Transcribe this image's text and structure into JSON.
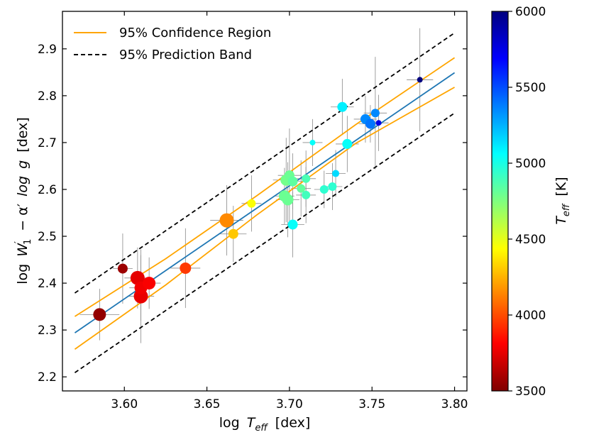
{
  "chart_data": {
    "type": "scatter",
    "xlabel_main": "log",
    "xlabel_var": "T",
    "xlabel_sub": "eff",
    "xlabel_unit": "[dex]",
    "ylabel_main": "log",
    "ylabel_var": "W",
    "ylabel_sup": "′",
    "ylabel_sub": "1",
    "ylabel_mid": "− α′",
    "ylabel_log": "log",
    "ylabel_g": "g",
    "ylabel_unit": "[dex]",
    "xlim": [
      3.5625,
      3.8075
    ],
    "ylim": [
      2.17,
      2.98
    ],
    "xticks": [
      "3.60",
      "3.65",
      "3.70",
      "3.75",
      "3.80"
    ],
    "xtick_values": [
      3.6,
      3.65,
      3.7,
      3.75,
      3.8
    ],
    "yticks": [
      "2.2",
      "2.3",
      "2.4",
      "2.5",
      "2.6",
      "2.7",
      "2.8",
      "2.9"
    ],
    "ytick_values": [
      2.2,
      2.3,
      2.4,
      2.5,
      2.6,
      2.7,
      2.8,
      2.9
    ],
    "legend": {
      "placement": "top-left",
      "entries": [
        {
          "label": "95% Confidence Region",
          "color": "#ffa500",
          "dash": "solid"
        },
        {
          "label": "95% Prediction Band",
          "color": "#000000",
          "dash": "dashed"
        }
      ]
    },
    "fit_line": {
      "color": "#1f77b4",
      "x": [
        3.57,
        3.8
      ],
      "y": [
        2.294,
        2.849
      ]
    },
    "confidence_upper": {
      "color": "#ffa500",
      "x": [
        3.57,
        3.625,
        3.68,
        3.74,
        3.8
      ],
      "y": [
        2.329,
        2.452,
        2.586,
        2.738,
        2.881
      ]
    },
    "confidence_lower": {
      "color": "#ffa500",
      "x": [
        3.57,
        3.625,
        3.68,
        3.74,
        3.8
      ],
      "y": [
        2.259,
        2.396,
        2.545,
        2.698,
        2.818
      ]
    },
    "prediction_upper": {
      "color": "#000000",
      "x": [
        3.57,
        3.8
      ],
      "y": [
        2.379,
        2.934
      ]
    },
    "prediction_lower": {
      "color": "#000000",
      "x": [
        3.57,
        3.8
      ],
      "y": [
        2.209,
        2.763
      ]
    },
    "colorbar": {
      "label_var": "T",
      "label_sub": "eff",
      "label_unit": "[K]",
      "range": [
        3500,
        6000
      ],
      "ticks": [
        "3500",
        "4000",
        "4500",
        "5000",
        "5500",
        "6000"
      ],
      "tick_values": [
        3500,
        4000,
        4500,
        5000,
        5500,
        6000
      ],
      "colormap": "jet-dark",
      "stops": [
        "#7f0000",
        "#ff0000",
        "#ff7f00",
        "#ffff00",
        "#7fff7f",
        "#00ffff",
        "#007fff",
        "#0000ff",
        "#00007f"
      ]
    },
    "points": [
      {
        "x": 3.585,
        "y": 2.333,
        "teff": 3550,
        "size": 9,
        "xerr": 0.012,
        "yerr": 0.055
      },
      {
        "x": 3.599,
        "y": 2.431,
        "teff": 3570,
        "size": 7,
        "xerr": 0.006,
        "yerr": 0.075
      },
      {
        "x": 3.608,
        "y": 2.411,
        "teff": 3750,
        "size": 10,
        "xerr": 0.008,
        "yerr": 0.065
      },
      {
        "x": 3.61,
        "y": 2.372,
        "teff": 3760,
        "size": 10,
        "xerr": 0.008,
        "yerr": 0.1
      },
      {
        "x": 3.61,
        "y": 2.39,
        "teff": 3780,
        "size": 9,
        "xerr": 0.007,
        "yerr": 0.07
      },
      {
        "x": 3.615,
        "y": 2.4,
        "teff": 3800,
        "size": 9,
        "xerr": 0.007,
        "yerr": 0.055
      },
      {
        "x": 3.637,
        "y": 2.432,
        "teff": 3950,
        "size": 8,
        "xerr": 0.009,
        "yerr": 0.085
      },
      {
        "x": 3.662,
        "y": 2.534,
        "teff": 4150,
        "size": 10,
        "xerr": 0.01,
        "yerr": 0.075
      },
      {
        "x": 3.666,
        "y": 2.505,
        "teff": 4300,
        "size": 7,
        "xerr": 0.008,
        "yerr": 0.06
      },
      {
        "x": 3.677,
        "y": 2.57,
        "teff": 4450,
        "size": 6,
        "xerr": 0.006,
        "yerr": 0.06
      },
      {
        "x": 3.697,
        "y": 2.586,
        "teff": 4800,
        "size": 8,
        "xerr": 0.006,
        "yerr": 0.06
      },
      {
        "x": 3.699,
        "y": 2.578,
        "teff": 4800,
        "size": 8,
        "xerr": 0.007,
        "yerr": 0.08
      },
      {
        "x": 3.698,
        "y": 2.62,
        "teff": 4780,
        "size": 8,
        "xerr": 0.008,
        "yerr": 0.09
      },
      {
        "x": 3.7,
        "y": 2.63,
        "teff": 4800,
        "size": 7,
        "xerr": 0.007,
        "yerr": 0.1
      },
      {
        "x": 3.702,
        "y": 2.617,
        "teff": 4830,
        "size": 7,
        "xerr": 0.007,
        "yerr": 0.06
      },
      {
        "x": 3.702,
        "y": 2.525,
        "teff": 5050,
        "size": 7,
        "xerr": 0.007,
        "yerr": 0.07
      },
      {
        "x": 3.707,
        "y": 2.602,
        "teff": 4820,
        "size": 6,
        "xerr": 0.006,
        "yerr": 0.06
      },
      {
        "x": 3.71,
        "y": 2.588,
        "teff": 4900,
        "size": 6,
        "xerr": 0.006,
        "yerr": 0.06
      },
      {
        "x": 3.71,
        "y": 2.623,
        "teff": 4880,
        "size": 6,
        "xerr": 0.006,
        "yerr": 0.06
      },
      {
        "x": 3.714,
        "y": 2.7,
        "teff": 5050,
        "size": 4,
        "xerr": 0.006,
        "yerr": 0.05
      },
      {
        "x": 3.721,
        "y": 2.6,
        "teff": 4950,
        "size": 6,
        "xerr": 0.006,
        "yerr": 0.04
      },
      {
        "x": 3.726,
        "y": 2.606,
        "teff": 4950,
        "size": 6,
        "xerr": 0.006,
        "yerr": 0.05
      },
      {
        "x": 3.728,
        "y": 2.634,
        "teff": 5150,
        "size": 5,
        "xerr": 0.006,
        "yerr": 0.05
      },
      {
        "x": 3.732,
        "y": 2.776,
        "teff": 5100,
        "size": 7,
        "xerr": 0.007,
        "yerr": 0.06
      },
      {
        "x": 3.735,
        "y": 2.697,
        "teff": 5050,
        "size": 7,
        "xerr": 0.007,
        "yerr": 0.06
      },
      {
        "x": 3.746,
        "y": 2.75,
        "teff": 5350,
        "size": 7,
        "xerr": 0.007,
        "yerr": 0.05
      },
      {
        "x": 3.749,
        "y": 2.74,
        "teff": 5400,
        "size": 7,
        "xerr": 0.007,
        "yerr": 0.04
      },
      {
        "x": 3.752,
        "y": 2.763,
        "teff": 5350,
        "size": 6,
        "xerr": 0.007,
        "yerr": 0.12
      },
      {
        "x": 3.754,
        "y": 2.742,
        "teff": 5750,
        "size": 4,
        "xerr": 0.006,
        "yerr": 0.06
      },
      {
        "x": 3.779,
        "y": 2.834,
        "teff": 6000,
        "size": 4,
        "xerr": 0.008,
        "yerr": 0.11
      }
    ]
  }
}
